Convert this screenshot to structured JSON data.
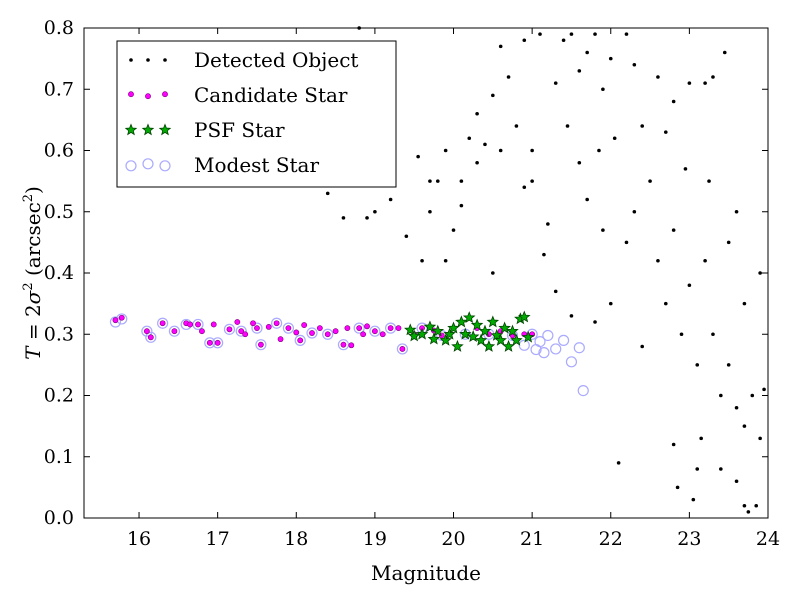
{
  "chart_data": {
    "type": "scatter",
    "xlabel": "Magnitude",
    "ylabel_var": "T",
    "ylabel_eq": " = 2",
    "ylabel_sigma": "σ",
    "ylabel_sup": "2",
    "ylabel_unit_open": " (arcsec",
    "ylabel_unit_close": ")",
    "xlim": [
      15.3,
      24
    ],
    "ylim": [
      0.0,
      0.8
    ],
    "xticks": [
      "16",
      "17",
      "18",
      "19",
      "20",
      "21",
      "22",
      "23",
      "24"
    ],
    "yticks": [
      "0.0",
      "0.1",
      "0.2",
      "0.3",
      "0.4",
      "0.5",
      "0.6",
      "0.7",
      "0.8"
    ],
    "grid": false,
    "legend_position": "top-left",
    "series": [
      {
        "name": "Detected Object",
        "color": "#000000",
        "marker": "dot",
        "points": [
          [
            18.4,
            0.53
          ],
          [
            18.6,
            0.49
          ],
          [
            18.8,
            0.8
          ],
          [
            18.9,
            0.49
          ],
          [
            19.0,
            0.5
          ],
          [
            19.6,
            0.42
          ],
          [
            19.7,
            0.5
          ],
          [
            19.8,
            0.55
          ],
          [
            19.9,
            0.42
          ],
          [
            20.0,
            0.47
          ],
          [
            20.1,
            0.55
          ],
          [
            20.2,
            0.62
          ],
          [
            20.3,
            0.58
          ],
          [
            20.4,
            0.61
          ],
          [
            20.5,
            0.4
          ],
          [
            20.5,
            0.69
          ],
          [
            20.6,
            0.77
          ],
          [
            20.7,
            0.72
          ],
          [
            20.8,
            0.64
          ],
          [
            20.9,
            0.78
          ],
          [
            21.0,
            0.6
          ],
          [
            21.1,
            0.79
          ],
          [
            21.2,
            0.48
          ],
          [
            21.3,
            0.71
          ],
          [
            21.4,
            0.78
          ],
          [
            21.5,
            0.79
          ],
          [
            21.6,
            0.73
          ],
          [
            21.7,
            0.76
          ],
          [
            21.8,
            0.79
          ],
          [
            21.9,
            0.7
          ],
          [
            22.0,
            0.75
          ],
          [
            22.2,
            0.79
          ],
          [
            22.3,
            0.74
          ],
          [
            22.6,
            0.72
          ],
          [
            22.8,
            0.68
          ],
          [
            23.0,
            0.71
          ],
          [
            23.2,
            0.71
          ],
          [
            23.3,
            0.72
          ],
          [
            23.45,
            0.76
          ],
          [
            23.6,
            0.5
          ],
          [
            23.9,
            0.4
          ],
          [
            21.0,
            0.55
          ],
          [
            21.3,
            0.37
          ],
          [
            21.5,
            0.33
          ],
          [
            21.7,
            0.52
          ],
          [
            21.8,
            0.32
          ],
          [
            21.9,
            0.47
          ],
          [
            22.0,
            0.35
          ],
          [
            22.2,
            0.45
          ],
          [
            22.3,
            0.5
          ],
          [
            22.4,
            0.28
          ],
          [
            22.5,
            0.55
          ],
          [
            22.6,
            0.42
          ],
          [
            22.7,
            0.35
          ],
          [
            22.8,
            0.47
          ],
          [
            22.9,
            0.3
          ],
          [
            23.0,
            0.38
          ],
          [
            23.1,
            0.25
          ],
          [
            23.2,
            0.42
          ],
          [
            23.3,
            0.3
          ],
          [
            23.4,
            0.2
          ],
          [
            23.5,
            0.25
          ],
          [
            23.6,
            0.18
          ],
          [
            23.7,
            0.15
          ],
          [
            23.8,
            0.2
          ],
          [
            23.9,
            0.13
          ],
          [
            22.1,
            0.09
          ],
          [
            22.8,
            0.12
          ],
          [
            22.85,
            0.05
          ],
          [
            23.05,
            0.03
          ],
          [
            23.1,
            0.08
          ],
          [
            23.15,
            0.13
          ],
          [
            23.4,
            0.08
          ],
          [
            23.6,
            0.06
          ],
          [
            23.7,
            0.02
          ],
          [
            23.75,
            0.01
          ],
          [
            23.85,
            0.02
          ],
          [
            19.2,
            0.52
          ],
          [
            19.4,
            0.46
          ],
          [
            19.55,
            0.59
          ],
          [
            19.7,
            0.55
          ],
          [
            19.9,
            0.6
          ],
          [
            20.1,
            0.51
          ],
          [
            20.3,
            0.66
          ],
          [
            20.6,
            0.6
          ],
          [
            20.9,
            0.54
          ],
          [
            21.15,
            0.43
          ],
          [
            21.45,
            0.64
          ],
          [
            21.6,
            0.58
          ],
          [
            21.85,
            0.6
          ],
          [
            22.05,
            0.62
          ],
          [
            22.4,
            0.64
          ],
          [
            22.7,
            0.63
          ],
          [
            22.95,
            0.57
          ],
          [
            23.25,
            0.55
          ],
          [
            23.5,
            0.45
          ],
          [
            23.7,
            0.35
          ],
          [
            23.95,
            0.21
          ]
        ]
      },
      {
        "name": "Candidate Star",
        "color": "#ff00ff",
        "marker": "small-circle",
        "points": [
          [
            15.7,
            0.323
          ],
          [
            15.78,
            0.327
          ],
          [
            16.1,
            0.305
          ],
          [
            16.15,
            0.295
          ],
          [
            16.3,
            0.318
          ],
          [
            16.45,
            0.305
          ],
          [
            16.6,
            0.318
          ],
          [
            16.65,
            0.316
          ],
          [
            16.75,
            0.316
          ],
          [
            16.8,
            0.305
          ],
          [
            16.9,
            0.286
          ],
          [
            16.95,
            0.316
          ],
          [
            17.0,
            0.286
          ],
          [
            17.15,
            0.308
          ],
          [
            17.25,
            0.32
          ],
          [
            17.3,
            0.305
          ],
          [
            17.35,
            0.3
          ],
          [
            17.45,
            0.318
          ],
          [
            17.5,
            0.31
          ],
          [
            17.55,
            0.283
          ],
          [
            17.65,
            0.312
          ],
          [
            17.75,
            0.318
          ],
          [
            17.8,
            0.292
          ],
          [
            17.9,
            0.31
          ],
          [
            18.0,
            0.303
          ],
          [
            18.05,
            0.29
          ],
          [
            18.1,
            0.315
          ],
          [
            18.2,
            0.302
          ],
          [
            18.3,
            0.31
          ],
          [
            18.4,
            0.3
          ],
          [
            18.5,
            0.305
          ],
          [
            18.6,
            0.283
          ],
          [
            18.65,
            0.31
          ],
          [
            18.7,
            0.282
          ],
          [
            18.8,
            0.31
          ],
          [
            18.85,
            0.3
          ],
          [
            18.9,
            0.313
          ],
          [
            19.0,
            0.305
          ],
          [
            19.1,
            0.3
          ],
          [
            19.2,
            0.31
          ],
          [
            19.3,
            0.31
          ],
          [
            19.35,
            0.276
          ],
          [
            19.5,
            0.3
          ],
          [
            19.6,
            0.31
          ],
          [
            19.75,
            0.306
          ],
          [
            19.85,
            0.298
          ],
          [
            20.0,
            0.31
          ],
          [
            20.15,
            0.3
          ],
          [
            20.3,
            0.31
          ],
          [
            20.45,
            0.3
          ],
          [
            20.6,
            0.305
          ],
          [
            20.75,
            0.298
          ],
          [
            20.9,
            0.3
          ],
          [
            21.0,
            0.3
          ]
        ]
      },
      {
        "name": "PSF Star",
        "color": "#00aa00",
        "marker": "star",
        "points": [
          [
            19.45,
            0.307
          ],
          [
            19.5,
            0.297
          ],
          [
            19.6,
            0.3
          ],
          [
            19.7,
            0.312
          ],
          [
            19.75,
            0.292
          ],
          [
            19.8,
            0.305
          ],
          [
            19.9,
            0.29
          ],
          [
            19.95,
            0.3
          ],
          [
            20.0,
            0.31
          ],
          [
            20.05,
            0.28
          ],
          [
            20.1,
            0.32
          ],
          [
            20.15,
            0.3
          ],
          [
            20.2,
            0.327
          ],
          [
            20.25,
            0.296
          ],
          [
            20.3,
            0.315
          ],
          [
            20.35,
            0.29
          ],
          [
            20.4,
            0.305
          ],
          [
            20.45,
            0.28
          ],
          [
            20.5,
            0.32
          ],
          [
            20.55,
            0.298
          ],
          [
            20.6,
            0.29
          ],
          [
            20.65,
            0.31
          ],
          [
            20.7,
            0.28
          ],
          [
            20.75,
            0.305
          ],
          [
            20.8,
            0.29
          ],
          [
            20.85,
            0.325
          ],
          [
            20.9,
            0.328
          ],
          [
            20.95,
            0.295
          ]
        ]
      },
      {
        "name": "Modest Star",
        "color": "#aaaaff",
        "marker": "open-circle",
        "points": [
          [
            15.7,
            0.32
          ],
          [
            15.78,
            0.325
          ],
          [
            16.1,
            0.305
          ],
          [
            16.15,
            0.295
          ],
          [
            16.3,
            0.318
          ],
          [
            16.45,
            0.305
          ],
          [
            16.6,
            0.316
          ],
          [
            16.75,
            0.316
          ],
          [
            16.9,
            0.286
          ],
          [
            17.0,
            0.286
          ],
          [
            17.15,
            0.308
          ],
          [
            17.3,
            0.305
          ],
          [
            17.5,
            0.31
          ],
          [
            17.55,
            0.283
          ],
          [
            17.75,
            0.318
          ],
          [
            17.9,
            0.31
          ],
          [
            18.05,
            0.29
          ],
          [
            18.2,
            0.302
          ],
          [
            18.4,
            0.3
          ],
          [
            18.6,
            0.283
          ],
          [
            18.8,
            0.31
          ],
          [
            19.0,
            0.305
          ],
          [
            19.2,
            0.31
          ],
          [
            19.35,
            0.276
          ],
          [
            19.6,
            0.31
          ],
          [
            19.85,
            0.298
          ],
          [
            20.15,
            0.3
          ],
          [
            20.45,
            0.3
          ],
          [
            20.75,
            0.298
          ],
          [
            21.0,
            0.3
          ],
          [
            20.9,
            0.282
          ],
          [
            21.05,
            0.275
          ],
          [
            21.1,
            0.288
          ],
          [
            21.15,
            0.27
          ],
          [
            21.2,
            0.298
          ],
          [
            21.3,
            0.276
          ],
          [
            21.4,
            0.29
          ],
          [
            21.5,
            0.255
          ],
          [
            21.6,
            0.278
          ],
          [
            21.65,
            0.208
          ]
        ]
      }
    ]
  }
}
